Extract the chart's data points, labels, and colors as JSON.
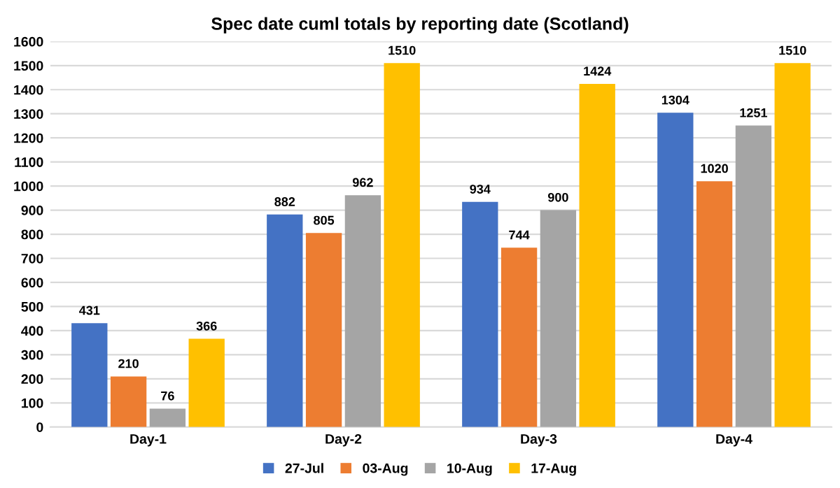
{
  "chart_data": {
    "type": "bar",
    "title": "Spec date cuml totals by reporting date (Scotland)",
    "categories": [
      "Day-1",
      "Day-2",
      "Day-3",
      "Day-4"
    ],
    "series": [
      {
        "name": "27-Jul",
        "color": "#4472c4",
        "values": [
          431,
          882,
          934,
          1304
        ]
      },
      {
        "name": "03-Aug",
        "color": "#ed7d31",
        "values": [
          210,
          805,
          744,
          1020
        ]
      },
      {
        "name": "10-Aug",
        "color": "#a5a5a5",
        "values": [
          76,
          962,
          900,
          1251
        ]
      },
      {
        "name": "17-Aug",
        "color": "#ffc000",
        "values": [
          366,
          1510,
          1424,
          1510
        ]
      }
    ],
    "ylim": [
      0,
      1600
    ],
    "yticks": [
      0,
      100,
      200,
      300,
      400,
      500,
      600,
      700,
      800,
      900,
      1000,
      1100,
      1200,
      1300,
      1400,
      1500,
      1600
    ],
    "grid": "y",
    "legend": "bottom",
    "data_labels": true
  }
}
